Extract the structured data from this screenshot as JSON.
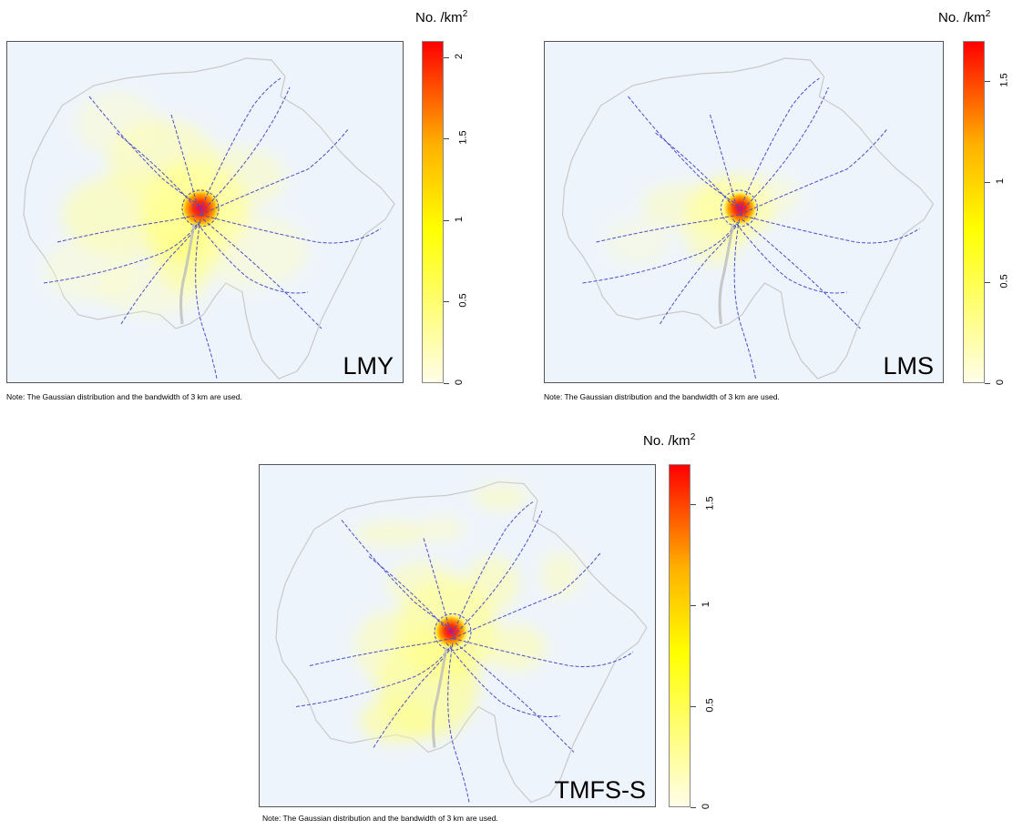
{
  "colors": {
    "low": "#fffde8",
    "mid": "#ffff00",
    "high": "#ff0000",
    "rail": "#4b4fc9",
    "coast": "#c9c9c9",
    "bg": "#eef4fb"
  },
  "panels": [
    {
      "label": "LMY",
      "unit_text": "No. /km",
      "unit_exp": "2",
      "note": "Note: The Gaussian distribution and the bandwidth of 3 km are used.",
      "scale_max": 2.1,
      "ticks": [
        {
          "value": 0,
          "label": "0"
        },
        {
          "value": 0.5,
          "label": "0.5"
        },
        {
          "value": 1,
          "label": "1"
        },
        {
          "value": 1.5,
          "label": "1.5"
        },
        {
          "value": 2,
          "label": "2"
        }
      ]
    },
    {
      "label": "LMS",
      "unit_text": "No. /km",
      "unit_exp": "2",
      "note": "Note: The Gaussian distribution and the bandwidth of 3 km are used.",
      "scale_max": 1.7,
      "ticks": [
        {
          "value": 0,
          "label": "0"
        },
        {
          "value": 0.5,
          "label": "0.5"
        },
        {
          "value": 1,
          "label": "1"
        },
        {
          "value": 1.5,
          "label": "1.5"
        }
      ]
    },
    {
      "label": "TMFS-S",
      "unit_text": "No. /km",
      "unit_exp": "2",
      "note": "Note: The Gaussian distribution and the bandwidth of 3 km are used.",
      "scale_max": 1.7,
      "ticks": [
        {
          "value": 0,
          "label": "0"
        },
        {
          "value": 0.5,
          "label": "0.5"
        },
        {
          "value": 1,
          "label": "1"
        },
        {
          "value": 1.5,
          "label": "1.5"
        }
      ]
    }
  ]
}
